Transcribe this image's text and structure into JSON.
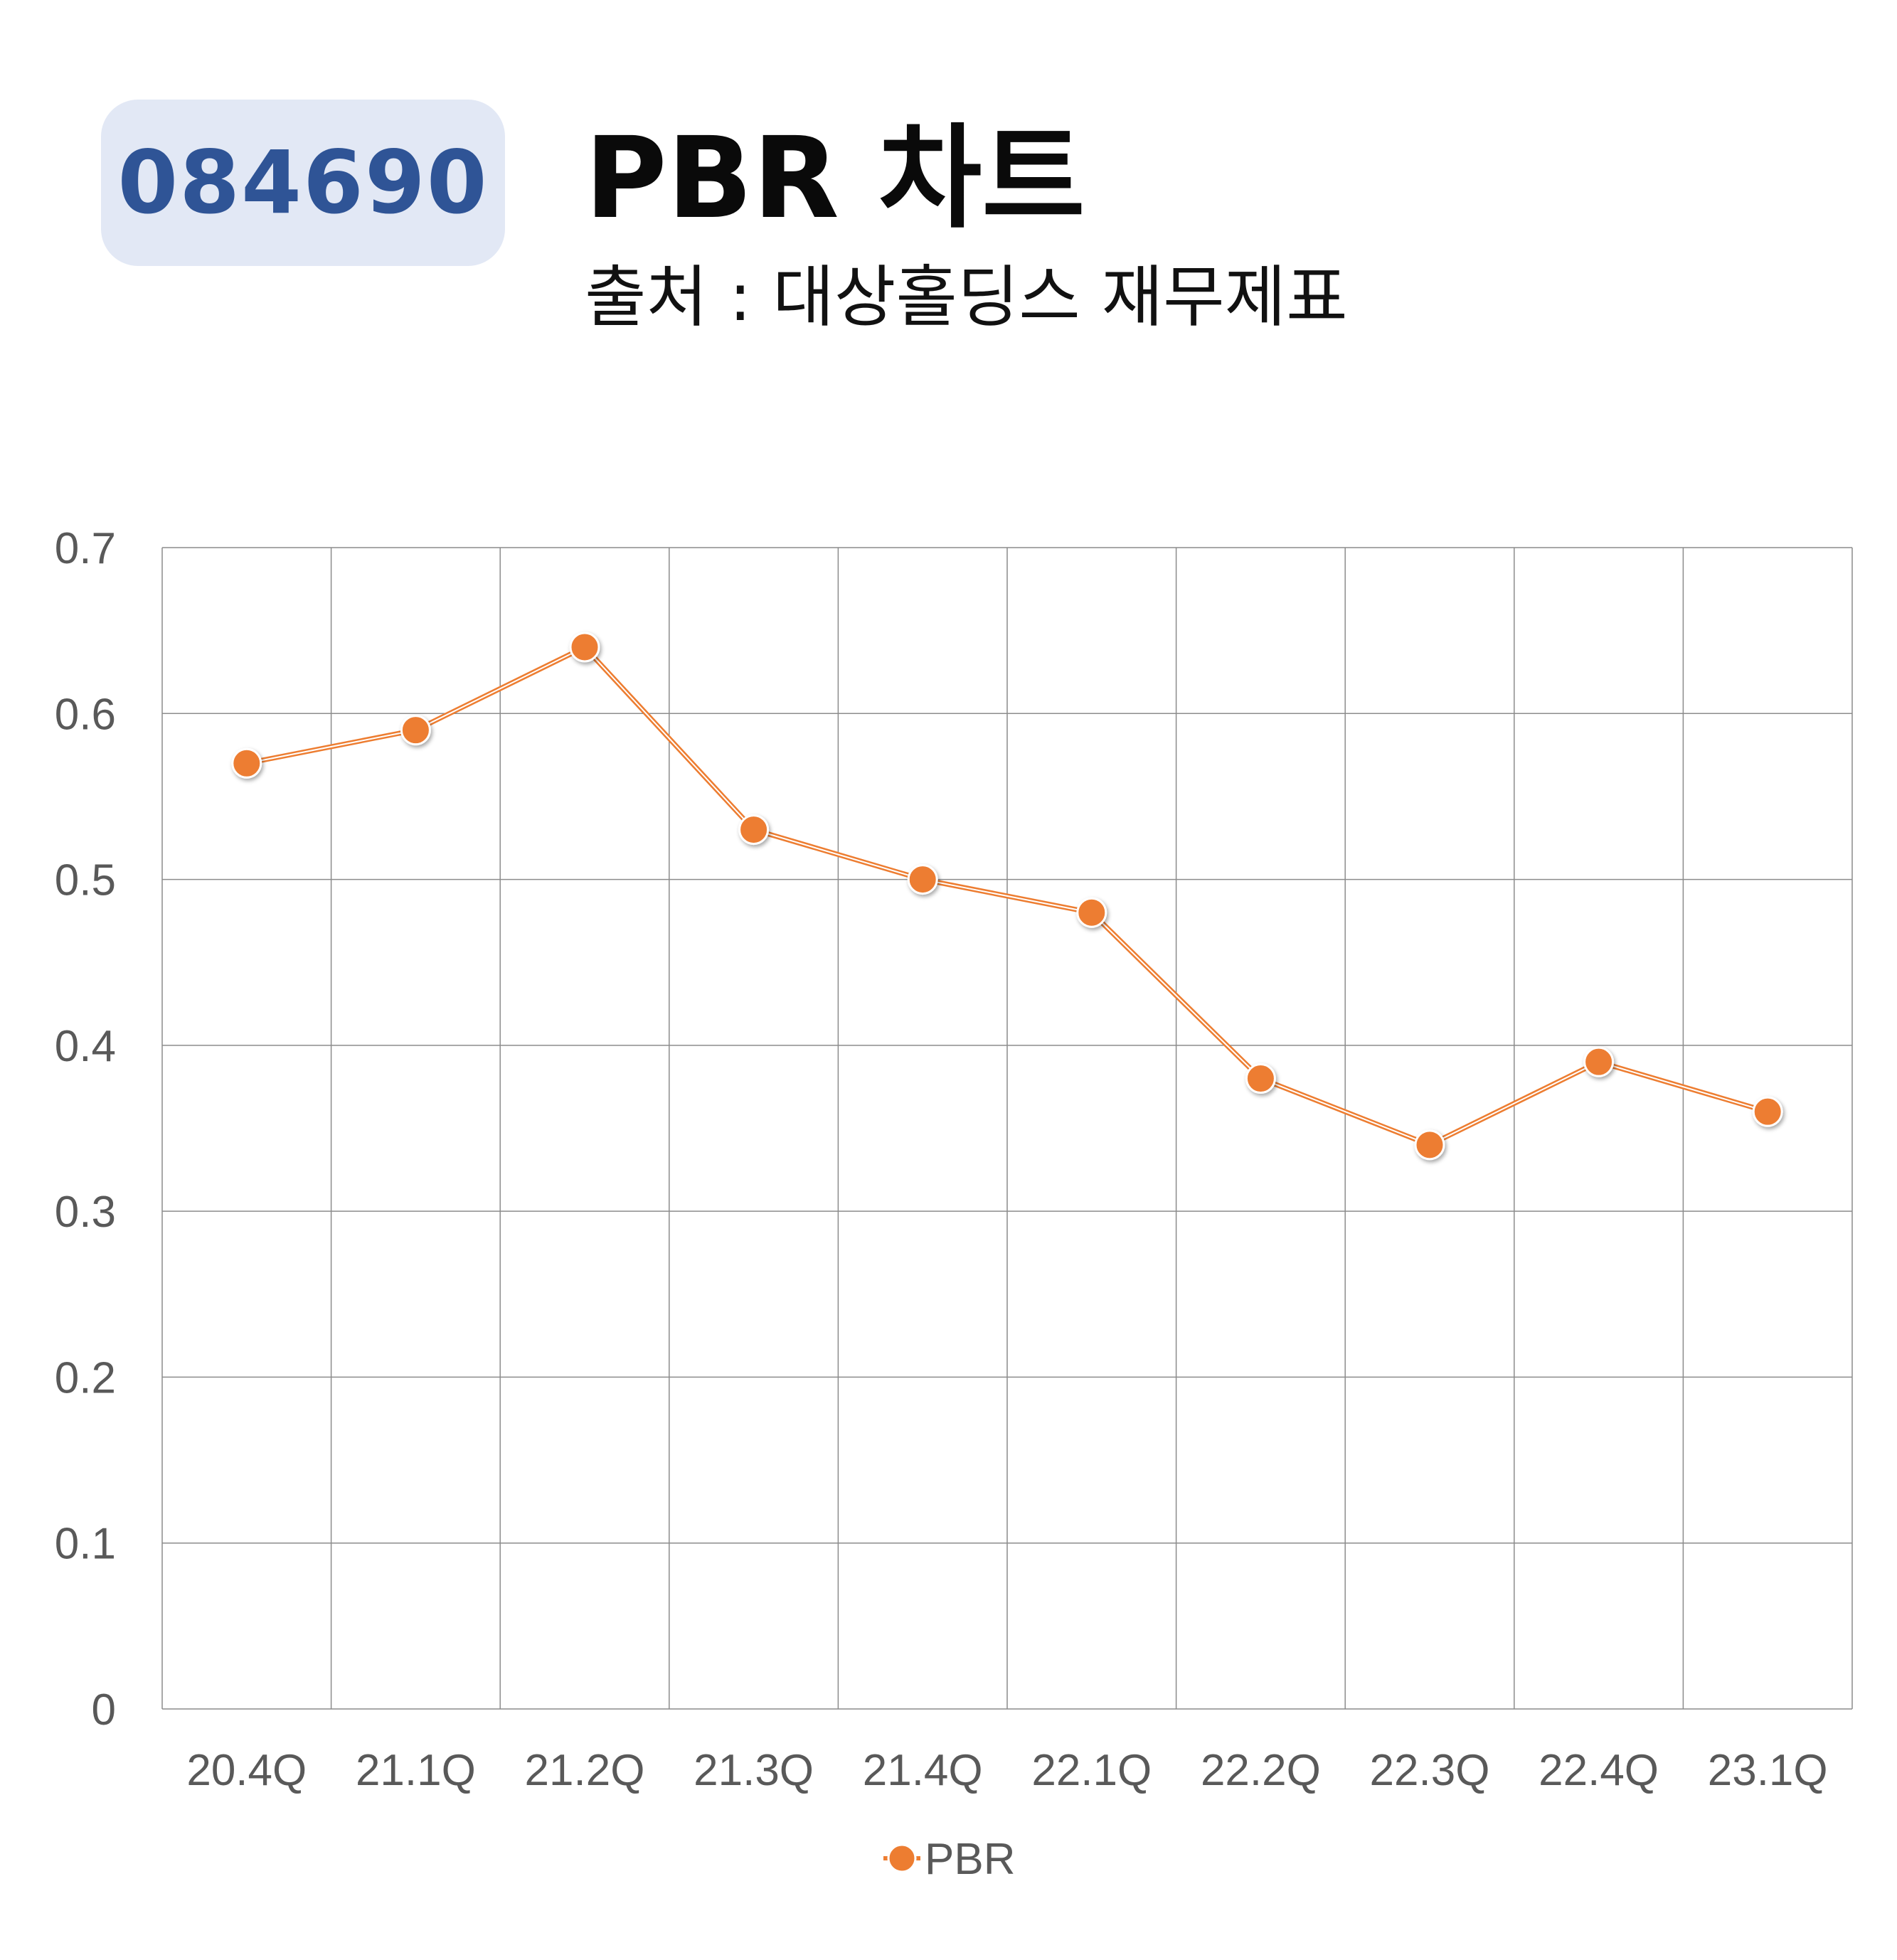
{
  "header": {
    "stock_code": "084690",
    "title": "PBR 차트",
    "subtitle": "출처 : 대상홀딩스 재무제표"
  },
  "colors": {
    "series": "#ed7d31",
    "badge_bg": "#e2e8f5",
    "badge_text": "#2f5496",
    "grid": "#8c8c8c"
  },
  "chart_data": {
    "type": "line",
    "categories": [
      "20.4Q",
      "21.1Q",
      "21.2Q",
      "21.3Q",
      "21.4Q",
      "22.1Q",
      "22.2Q",
      "22.3Q",
      "22.4Q",
      "23.1Q"
    ],
    "series": [
      {
        "name": "PBR",
        "values": [
          0.57,
          0.59,
          0.64,
          0.53,
          0.5,
          0.48,
          0.38,
          0.34,
          0.39,
          0.36
        ]
      }
    ],
    "y_ticks": [
      "0",
      "0.1",
      "0.2",
      "0.3",
      "0.4",
      "0.5",
      "0.6",
      "0.7"
    ],
    "ylim": [
      0,
      0.7
    ],
    "title": "",
    "xlabel": "",
    "ylabel": "",
    "grid": true,
    "legend_position": "bottom",
    "marker": "circle"
  }
}
